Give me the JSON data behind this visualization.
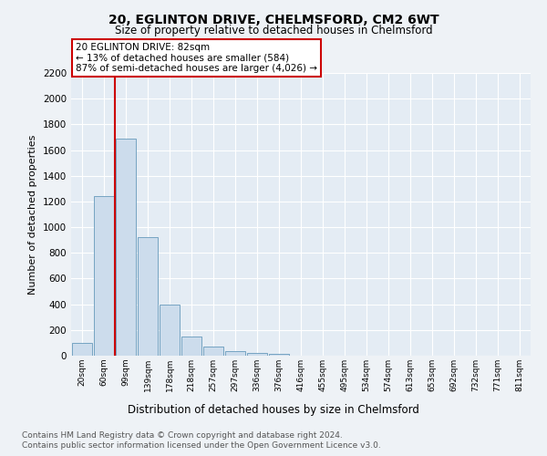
{
  "title": "20, EGLINTON DRIVE, CHELMSFORD, CM2 6WT",
  "subtitle": "Size of property relative to detached houses in Chelmsford",
  "xlabel": "Distribution of detached houses by size in Chelmsford",
  "ylabel": "Number of detached properties",
  "bar_categories": [
    "20sqm",
    "60sqm",
    "99sqm",
    "139sqm",
    "178sqm",
    "218sqm",
    "257sqm",
    "297sqm",
    "336sqm",
    "376sqm",
    "416sqm",
    "455sqm",
    "495sqm",
    "534sqm",
    "574sqm",
    "613sqm",
    "653sqm",
    "692sqm",
    "732sqm",
    "771sqm",
    "811sqm"
  ],
  "bar_heights": [
    100,
    1240,
    1690,
    920,
    400,
    150,
    70,
    35,
    20,
    15,
    0,
    0,
    0,
    0,
    0,
    0,
    0,
    0,
    0,
    0,
    0
  ],
  "bar_color": "#ccdcec",
  "bar_edge_color": "#6699bb",
  "vline_x": 1.5,
  "annotation_title": "20 EGLINTON DRIVE: 82sqm",
  "annotation_line1": "← 13% of detached houses are smaller (584)",
  "annotation_line2": "87% of semi-detached houses are larger (4,026) →",
  "annotation_box_color": "#ffffff",
  "annotation_box_edge_color": "#cc0000",
  "vline_color": "#cc0000",
  "ylim": [
    0,
    2200
  ],
  "yticks": [
    0,
    200,
    400,
    600,
    800,
    1000,
    1200,
    1400,
    1600,
    1800,
    2000,
    2200
  ],
  "footer_line1": "Contains HM Land Registry data © Crown copyright and database right 2024.",
  "footer_line2": "Contains public sector information licensed under the Open Government Licence v3.0.",
  "bg_color": "#eef2f6",
  "plot_bg_color": "#e4ecf4",
  "grid_color": "#ffffff"
}
